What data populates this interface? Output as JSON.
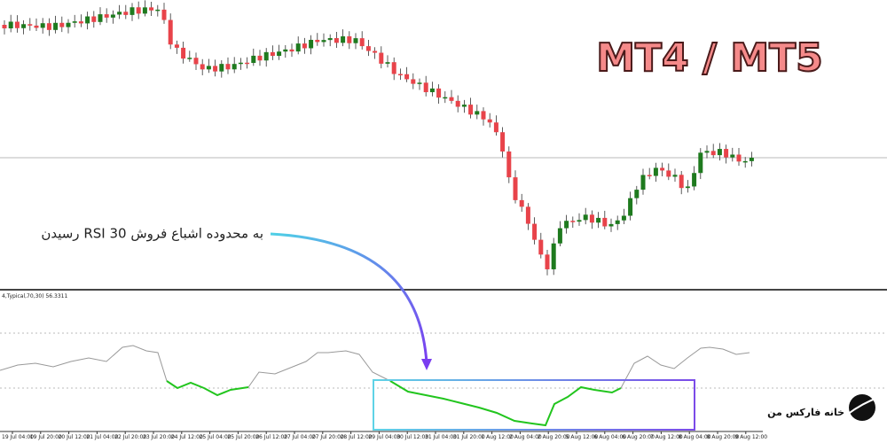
{
  "header": {
    "title": "MT4 / MT5"
  },
  "annotation": {
    "text": "رسیدن RSI به محدوده اشباع فروش 30"
  },
  "indicator": {
    "label": "4,Typical,70,30) 56.3311"
  },
  "logo": {
    "text": "خانه فارکس من"
  },
  "time_axis": {
    "labels": [
      "19 Jul 04:00",
      "19 Jul 20:00",
      "20 Jul 12:00",
      "21 Jul 04:00",
      "22 Jul 20:00",
      "23 Jul 20:00",
      "24 Jul 12:00",
      "25 Jul 04:00",
      "25 Jul 20:00",
      "26 Jul 12:00",
      "27 Jul 04:00",
      "27 Jul 20:00",
      "28 Jul 12:00",
      "29 Jul 04:00",
      "30 Jul 12:00",
      "31 Jul 04:00",
      "31 Jul 20:00",
      "1 Aug 12:00",
      "2 Aug 04:00",
      "2 Aug 20:00",
      "5 Aug 12:00",
      "6 Aug 04:00",
      "6 Aug 20:00",
      "7 Aug 12:00",
      "8 Aug 04:00",
      "8 Aug 20:00",
      "9 Aug 12:00"
    ]
  }
}
